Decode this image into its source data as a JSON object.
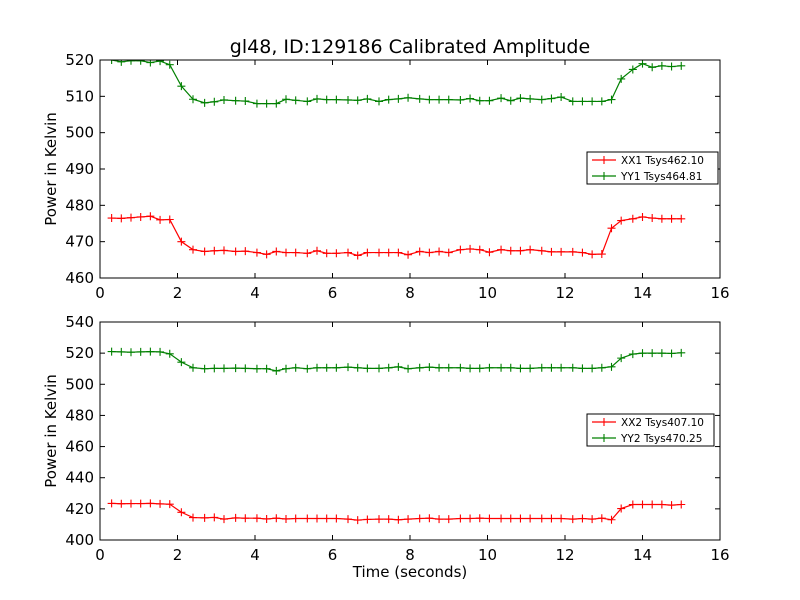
{
  "figure": {
    "title": "gl48, ID:129186 Calibrated Amplitude",
    "xlabel": "Time (seconds)"
  },
  "chart_data": [
    {
      "type": "line",
      "ylabel": "Power in Kelvin",
      "xlim": [
        0,
        16
      ],
      "ylim": [
        460,
        520
      ],
      "xticks": [
        0,
        2,
        4,
        6,
        8,
        10,
        12,
        14,
        16
      ],
      "yticks": [
        460,
        470,
        480,
        490,
        500,
        510,
        520
      ],
      "grid": false,
      "legend_position": "center-right",
      "x": [
        0.3,
        0.55,
        0.8,
        1.05,
        1.3,
        1.55,
        1.8,
        2.1,
        2.4,
        2.7,
        2.95,
        3.2,
        3.5,
        3.75,
        4.05,
        4.3,
        4.55,
        4.8,
        5.05,
        5.35,
        5.6,
        5.85,
        6.1,
        6.4,
        6.65,
        6.9,
        7.2,
        7.45,
        7.7,
        7.95,
        8.25,
        8.5,
        8.75,
        9.0,
        9.3,
        9.55,
        9.8,
        10.05,
        10.35,
        10.6,
        10.85,
        11.1,
        11.4,
        11.65,
        11.9,
        12.2,
        12.45,
        12.7,
        12.95,
        13.2,
        13.45,
        13.75,
        14.0,
        14.25,
        14.5,
        14.75,
        15.0
      ],
      "series": [
        {
          "name": "XX1 Tsys462.10",
          "color": "#ff0000",
          "values": [
            476.5,
            476.4,
            476.6,
            476.8,
            477.0,
            476.0,
            476.1,
            470.0,
            467.8,
            467.3,
            467.5,
            467.6,
            467.3,
            467.4,
            467.0,
            466.5,
            467.3,
            467.0,
            467.0,
            466.8,
            467.5,
            466.8,
            466.8,
            467.0,
            466.2,
            467.0,
            467.0,
            467.0,
            467.0,
            466.4,
            467.3,
            467.0,
            467.3,
            467.0,
            467.8,
            468.0,
            467.8,
            467.1,
            467.8,
            467.5,
            467.5,
            467.8,
            467.5,
            467.2,
            467.2,
            467.2,
            467.0,
            466.5,
            466.6,
            473.7,
            475.8,
            476.3,
            476.8,
            476.5,
            476.3,
            476.3,
            476.3
          ]
        },
        {
          "name": "YY1 Tsys464.81",
          "color": "#008000",
          "values": [
            520.0,
            519.5,
            519.8,
            519.8,
            519.3,
            519.7,
            518.7,
            512.8,
            509.2,
            508.2,
            508.5,
            509.0,
            508.8,
            508.7,
            508.0,
            508.0,
            508.0,
            509.2,
            508.9,
            508.6,
            509.3,
            509.1,
            509.1,
            509.0,
            508.9,
            509.3,
            508.6,
            509.1,
            509.3,
            509.6,
            509.3,
            509.1,
            509.1,
            509.1,
            509.0,
            509.4,
            508.8,
            508.8,
            509.5,
            508.8,
            509.5,
            509.3,
            509.1,
            509.4,
            509.8,
            508.6,
            508.6,
            508.6,
            508.6,
            509.1,
            514.8,
            517.4,
            519.0,
            518.0,
            518.4,
            518.2,
            518.4
          ]
        }
      ]
    },
    {
      "type": "line",
      "ylabel": "Power in Kelvin",
      "xlim": [
        0,
        16
      ],
      "ylim": [
        400,
        540
      ],
      "xticks": [
        0,
        2,
        4,
        6,
        8,
        10,
        12,
        14,
        16
      ],
      "yticks": [
        400,
        420,
        440,
        460,
        480,
        500,
        520,
        540
      ],
      "grid": false,
      "legend_position": "center-right",
      "x": [
        0.3,
        0.55,
        0.8,
        1.05,
        1.3,
        1.55,
        1.8,
        2.1,
        2.4,
        2.7,
        2.95,
        3.2,
        3.5,
        3.75,
        4.05,
        4.3,
        4.55,
        4.8,
        5.05,
        5.35,
        5.6,
        5.85,
        6.1,
        6.4,
        6.65,
        6.9,
        7.2,
        7.45,
        7.7,
        7.95,
        8.25,
        8.5,
        8.75,
        9.0,
        9.3,
        9.55,
        9.8,
        10.05,
        10.35,
        10.6,
        10.85,
        11.1,
        11.4,
        11.65,
        11.9,
        12.2,
        12.45,
        12.7,
        12.95,
        13.2,
        13.45,
        13.75,
        14.0,
        14.25,
        14.5,
        14.75,
        15.0
      ],
      "series": [
        {
          "name": "XX2 Tsys407.10",
          "color": "#ff0000",
          "values": [
            423.5,
            423.3,
            423.4,
            423.4,
            423.5,
            423.2,
            423.0,
            417.8,
            414.4,
            414.2,
            414.5,
            413.4,
            414.2,
            414.0,
            414.0,
            413.5,
            414.0,
            413.5,
            413.8,
            413.8,
            413.8,
            413.8,
            413.8,
            413.4,
            412.8,
            413.2,
            413.4,
            413.4,
            413.0,
            413.4,
            413.8,
            414.0,
            413.4,
            413.4,
            413.8,
            413.8,
            414.0,
            413.8,
            413.8,
            413.8,
            413.8,
            413.8,
            413.8,
            413.8,
            413.8,
            413.4,
            413.8,
            413.4,
            414.0,
            413.0,
            420.2,
            422.8,
            422.8,
            422.8,
            422.8,
            422.4,
            422.8
          ]
        },
        {
          "name": "YY2 Tsys470.25",
          "color": "#008000",
          "values": [
            521.0,
            520.8,
            520.6,
            520.8,
            521.0,
            520.8,
            519.6,
            514.2,
            510.6,
            510.0,
            510.2,
            510.2,
            510.4,
            510.2,
            510.0,
            510.0,
            508.6,
            510.0,
            510.6,
            510.0,
            510.6,
            510.6,
            510.6,
            511.0,
            510.6,
            510.2,
            510.2,
            510.6,
            511.2,
            510.0,
            510.6,
            511.0,
            510.6,
            510.6,
            510.6,
            510.2,
            510.2,
            510.6,
            510.6,
            510.6,
            510.2,
            510.2,
            510.6,
            510.6,
            510.6,
            510.6,
            510.2,
            510.2,
            510.6,
            511.2,
            516.8,
            519.4,
            520.0,
            520.0,
            520.0,
            519.8,
            520.2
          ]
        }
      ]
    }
  ]
}
